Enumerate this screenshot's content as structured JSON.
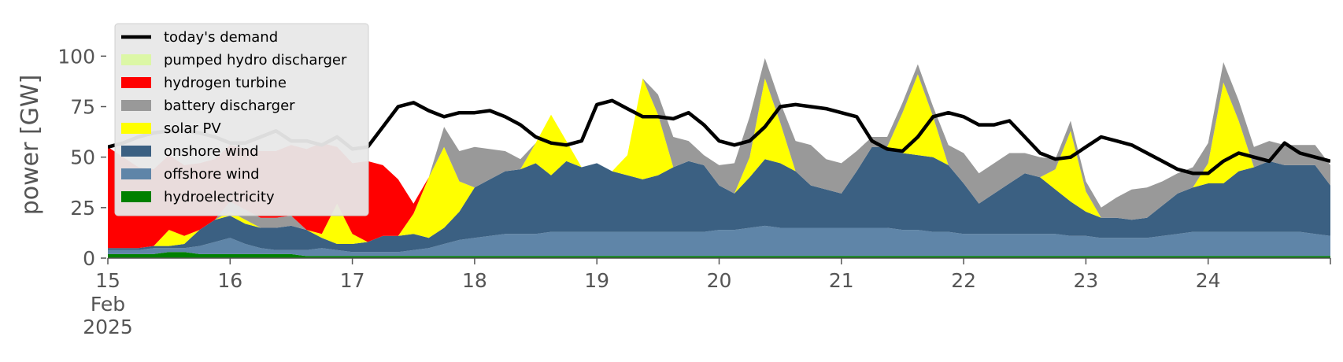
{
  "chart_data": {
    "type": "area",
    "stacked": true,
    "ylabel": "power [GW]",
    "xlabel": "",
    "ylim": [
      0,
      120
    ],
    "yticks": [
      0,
      25,
      50,
      75,
      100
    ],
    "xlim": [
      "2025-02-15",
      "2025-02-25"
    ],
    "xtick_labels": [
      "15",
      "16",
      "17",
      "18",
      "19",
      "20",
      "21",
      "22",
      "23",
      "24"
    ],
    "first_tick_month": "Feb",
    "first_tick_year": "2025",
    "grid": false,
    "legend_position": "top-left",
    "x_hours": [
      0,
      3,
      6,
      9,
      12,
      15,
      18,
      21,
      24,
      27,
      30,
      33,
      36,
      39,
      42,
      45,
      48,
      51,
      54,
      57,
      60,
      63,
      66,
      69,
      72,
      75,
      78,
      81,
      84,
      87,
      90,
      93,
      96,
      99,
      102,
      105,
      108,
      111,
      114,
      117,
      120,
      123,
      126,
      129,
      132,
      135,
      138,
      141,
      144,
      147,
      150,
      153,
      156,
      159,
      162,
      165,
      168,
      171,
      174,
      177,
      180,
      183,
      186,
      189,
      192,
      195,
      198,
      201,
      204,
      207,
      210,
      213,
      216,
      219,
      222,
      225,
      228,
      231,
      234,
      237,
      240
    ],
    "series": [
      {
        "name": "hydroelectricity",
        "color": "#008000",
        "values": [
          2,
          2,
          2,
          2,
          3,
          3,
          2,
          2,
          2,
          2,
          2,
          2,
          2,
          1,
          1,
          1,
          1,
          1,
          1,
          1,
          1,
          1,
          1,
          1,
          1,
          1,
          1,
          1,
          1,
          1,
          1,
          1,
          1,
          1,
          1,
          1,
          1,
          1,
          1,
          1,
          1,
          1,
          1,
          1,
          1,
          1,
          1,
          1,
          1,
          1,
          1,
          1,
          1,
          1,
          1,
          1,
          1,
          1,
          1,
          1,
          1,
          1,
          1,
          1,
          1,
          1,
          1,
          1,
          1,
          1,
          1,
          1,
          1,
          1,
          1,
          1,
          1,
          1,
          1,
          1,
          1
        ]
      },
      {
        "name": "offshore wind",
        "color": "#5f85a8",
        "values": [
          2,
          2,
          2,
          3,
          2,
          2,
          4,
          6,
          8,
          5,
          3,
          2,
          2,
          3,
          4,
          3,
          2,
          2,
          2,
          2,
          3,
          4,
          6,
          8,
          9,
          10,
          11,
          11,
          11,
          12,
          12,
          12,
          12,
          12,
          12,
          12,
          12,
          12,
          12,
          12,
          13,
          13,
          14,
          15,
          14,
          14,
          14,
          14,
          14,
          14,
          14,
          14,
          13,
          13,
          12,
          12,
          11,
          11,
          11,
          11,
          11,
          11,
          11,
          10,
          10,
          9,
          9,
          9,
          9,
          10,
          11,
          12,
          12,
          12,
          12,
          12,
          12,
          12,
          12,
          11,
          10
        ]
      },
      {
        "name": "onshore wind",
        "color": "#3b6082",
        "values": [
          1,
          1,
          1,
          1,
          1,
          2,
          8,
          11,
          11,
          10,
          10,
          11,
          12,
          10,
          5,
          3,
          4,
          5,
          8,
          8,
          8,
          5,
          8,
          14,
          25,
          28,
          31,
          32,
          35,
          28,
          35,
          32,
          34,
          30,
          28,
          26,
          28,
          32,
          35,
          33,
          22,
          18,
          25,
          33,
          32,
          28,
          21,
          19,
          17,
          28,
          40,
          40,
          38,
          37,
          37,
          33,
          25,
          15,
          20,
          25,
          30,
          28,
          22,
          17,
          12,
          10,
          10,
          9,
          10,
          15,
          20,
          22,
          24,
          24,
          30,
          32,
          35,
          33,
          33,
          34,
          25
        ]
      },
      {
        "name": "solar PV",
        "color": "#ffff00",
        "values": [
          0,
          0,
          0,
          0,
          8,
          4,
          0,
          0,
          2,
          2,
          0,
          0,
          0,
          0,
          2,
          20,
          5,
          0,
          0,
          0,
          10,
          30,
          40,
          15,
          0,
          0,
          0,
          0,
          10,
          30,
          10,
          0,
          0,
          0,
          10,
          50,
          30,
          0,
          0,
          0,
          0,
          0,
          10,
          40,
          20,
          0,
          0,
          0,
          0,
          0,
          0,
          0,
          20,
          40,
          20,
          0,
          0,
          0,
          0,
          0,
          0,
          0,
          10,
          35,
          10,
          0,
          0,
          0,
          0,
          0,
          0,
          0,
          10,
          50,
          25,
          0,
          0,
          0,
          0,
          0,
          0
        ]
      },
      {
        "name": "battery discharger",
        "color": "#999999",
        "values": [
          0,
          0,
          0,
          0,
          0,
          0,
          0,
          0,
          5,
          5,
          5,
          5,
          5,
          0,
          0,
          0,
          0,
          0,
          0,
          0,
          0,
          0,
          10,
          15,
          20,
          15,
          10,
          5,
          0,
          0,
          0,
          0,
          0,
          0,
          0,
          0,
          10,
          15,
          10,
          5,
          10,
          15,
          20,
          10,
          10,
          15,
          20,
          15,
          15,
          10,
          5,
          5,
          5,
          5,
          5,
          10,
          15,
          15,
          15,
          15,
          10,
          10,
          5,
          5,
          5,
          5,
          10,
          15,
          15,
          12,
          10,
          10,
          10,
          10,
          10,
          10,
          10,
          10,
          10,
          10,
          10
        ]
      },
      {
        "name": "hydrogen turbine",
        "color": "#ff0000",
        "values": [
          50,
          45,
          40,
          38,
          37,
          35,
          33,
          30,
          28,
          30,
          33,
          33,
          35,
          40,
          45,
          28,
          35,
          40,
          35,
          28,
          5,
          0,
          0,
          0,
          0,
          0,
          0,
          0,
          0,
          0,
          0,
          0,
          0,
          0,
          0,
          0,
          0,
          0,
          0,
          0,
          0,
          0,
          0,
          0,
          0,
          0,
          0,
          0,
          0,
          0,
          0,
          0,
          0,
          0,
          0,
          0,
          0,
          0,
          0,
          0,
          0,
          0,
          0,
          0,
          0,
          0,
          0,
          0,
          0,
          0,
          0,
          0,
          0,
          0,
          0,
          0,
          0,
          0,
          0,
          0,
          0
        ]
      },
      {
        "name": "pumped hydro discharger",
        "color": "#dcf7a6",
        "values": [
          0,
          0,
          0,
          0,
          0,
          0,
          0,
          0,
          0,
          0,
          0,
          0,
          0,
          0,
          0,
          0,
          0,
          0,
          0,
          0,
          0,
          0,
          0,
          0,
          0,
          0,
          0,
          0,
          0,
          0,
          0,
          0,
          0,
          0,
          0,
          0,
          0,
          0,
          0,
          0,
          0,
          0,
          0,
          0,
          0,
          0,
          0,
          0,
          0,
          0,
          0,
          0,
          0,
          0,
          0,
          0,
          0,
          0,
          0,
          0,
          0,
          0,
          0,
          0,
          0,
          0,
          0,
          0,
          0,
          0,
          0,
          0,
          0,
          0,
          0,
          0,
          0,
          0,
          0,
          0,
          0
        ]
      }
    ],
    "demand": {
      "name": "today's demand",
      "color": "#000000",
      "values": [
        55,
        57,
        60,
        62,
        63,
        63,
        62,
        60,
        57,
        57,
        60,
        63,
        58,
        58,
        56,
        60,
        54,
        55,
        65,
        75,
        77,
        73,
        70,
        72,
        72,
        73,
        70,
        66,
        60,
        57,
        56,
        58,
        76,
        78,
        74,
        70,
        70,
        69,
        72,
        66,
        58,
        56,
        58,
        65,
        75,
        76,
        75,
        74,
        72,
        70,
        58,
        54,
        53,
        60,
        70,
        72,
        70,
        66,
        66,
        68,
        60,
        52,
        49,
        50,
        55,
        60,
        58,
        56,
        52,
        48,
        44,
        42,
        42,
        48,
        52,
        50,
        48,
        57,
        52,
        50,
        48
      ]
    }
  }
}
